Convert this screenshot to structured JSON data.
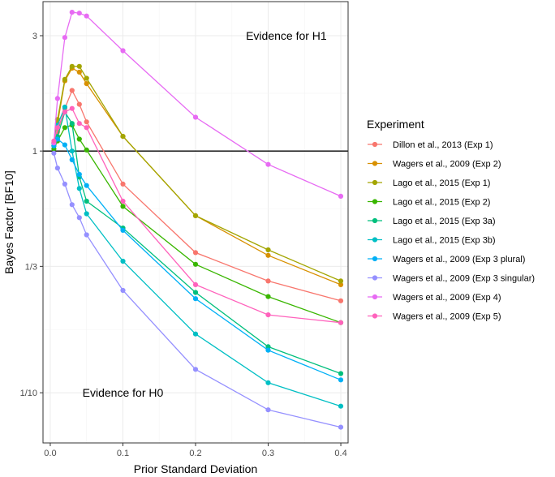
{
  "chart_data": {
    "type": "line",
    "xlabel": "Prior Standard Deviation",
    "ylabel": "Bayes Factor [BF10]",
    "x": [
      0.005,
      0.01,
      0.02,
      0.03,
      0.04,
      0.05,
      0.1,
      0.2,
      0.3,
      0.4
    ],
    "xlim": [
      -0.01,
      0.41
    ],
    "ylim": [
      0.062,
      4.15
    ],
    "y_scale": "log",
    "x_ticks": [
      0.0,
      0.1,
      0.2,
      0.3,
      0.4
    ],
    "x_tick_labels": [
      "0.0",
      "0.1",
      "0.2",
      "0.3",
      "0.4"
    ],
    "y_ticks": [
      0.1,
      0.3333,
      1,
      3
    ],
    "y_tick_labels": [
      "1/10",
      "1/3",
      "1",
      "3"
    ],
    "reference_line": 1,
    "grid": true,
    "legend_title": "Experiment",
    "legend_position": "right",
    "annotations": [
      {
        "text": "Evidence for H1",
        "x": 0.325,
        "y": 3.0
      },
      {
        "text": "Evidence for H0",
        "x": 0.1,
        "y": 0.1
      }
    ],
    "series": [
      {
        "name": "Dillon et al., 2013 (Exp 1)",
        "color": "#F8766D",
        "values": [
          1.05,
          1.2,
          1.5,
          1.78,
          1.56,
          1.32,
          0.73,
          0.38,
          0.29,
          0.24
        ]
      },
      {
        "name": "Wagers et al., 2009 (Exp 2)",
        "color": "#D89000",
        "values": [
          1.08,
          1.3,
          1.95,
          2.2,
          2.12,
          1.9,
          1.15,
          0.54,
          0.37,
          0.28
        ]
      },
      {
        "name": "Lago et al., 2015 (Exp 1)",
        "color": "#A3A500",
        "values": [
          1.08,
          1.35,
          1.98,
          2.24,
          2.24,
          2.0,
          1.15,
          0.54,
          0.39,
          0.29
        ]
      },
      {
        "name": "Lago et al., 2015 (Exp 2)",
        "color": "#39B600",
        "values": [
          1.02,
          1.1,
          1.25,
          1.28,
          1.12,
          1.01,
          0.59,
          0.34,
          0.25,
          0.195
        ]
      },
      {
        "name": "Lago et al., 2015 (Exp 3a)",
        "color": "#00BF7D",
        "values": [
          1.05,
          1.15,
          1.45,
          1.3,
          0.78,
          0.62,
          0.48,
          0.26,
          0.155,
          0.12
        ]
      },
      {
        "name": "Lago et al., 2015 (Exp 3b)",
        "color": "#00BFC4",
        "values": [
          1.08,
          1.28,
          1.52,
          1.0,
          0.7,
          0.55,
          0.35,
          0.175,
          0.11,
          0.088
        ]
      },
      {
        "name": "Wagers et al., 2009 (Exp 3 plural)",
        "color": "#00B0F6",
        "values": [
          1.05,
          1.12,
          1.06,
          0.92,
          0.8,
          0.72,
          0.47,
          0.245,
          0.15,
          0.113
        ]
      },
      {
        "name": "Wagers et al., 2009 (Exp 3 singular)",
        "color": "#9590FF",
        "values": [
          0.98,
          0.85,
          0.73,
          0.6,
          0.53,
          0.45,
          0.265,
          0.125,
          0.085,
          0.072
        ]
      },
      {
        "name": "Wagers et al., 2009 (Exp 4)",
        "color": "#E76BF3",
        "values": [
          1.08,
          1.65,
          2.95,
          3.75,
          3.72,
          3.62,
          2.6,
          1.38,
          0.88,
          0.65
        ]
      },
      {
        "name": "Wagers et al., 2009 (Exp 5)",
        "color": "#FF62BC",
        "values": [
          1.1,
          1.25,
          1.45,
          1.5,
          1.3,
          1.25,
          0.62,
          0.28,
          0.21,
          0.195
        ]
      }
    ]
  }
}
